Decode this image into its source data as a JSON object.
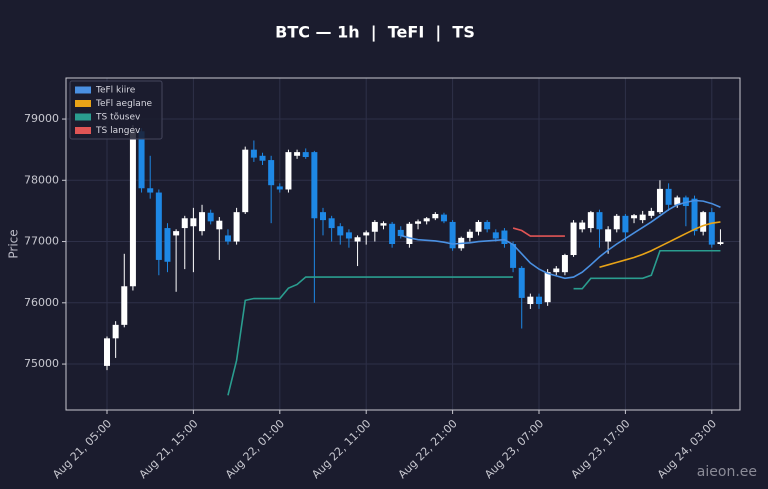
{
  "chart_data": {
    "type": "candlestick",
    "title": "BTC — 1h  |  TeFI  |  TS",
    "ylabel": "Price",
    "watermark": "aieon.ee",
    "x": [
      "Aug 21, 05:00",
      "Aug 21, 06:00",
      "Aug 21, 07:00",
      "Aug 21, 08:00",
      "Aug 21, 09:00",
      "Aug 21, 10:00",
      "Aug 21, 11:00",
      "Aug 21, 12:00",
      "Aug 21, 13:00",
      "Aug 21, 14:00",
      "Aug 21, 15:00",
      "Aug 21, 16:00",
      "Aug 21, 17:00",
      "Aug 21, 18:00",
      "Aug 21, 19:00",
      "Aug 21, 20:00",
      "Aug 21, 21:00",
      "Aug 21, 22:00",
      "Aug 21, 23:00",
      "Aug 22, 00:00",
      "Aug 22, 01:00",
      "Aug 22, 02:00",
      "Aug 22, 03:00",
      "Aug 22, 04:00",
      "Aug 22, 05:00",
      "Aug 22, 06:00",
      "Aug 22, 07:00",
      "Aug 22, 08:00",
      "Aug 22, 09:00",
      "Aug 22, 10:00",
      "Aug 22, 11:00",
      "Aug 22, 12:00",
      "Aug 22, 13:00",
      "Aug 22, 14:00",
      "Aug 22, 15:00",
      "Aug 22, 16:00",
      "Aug 22, 17:00",
      "Aug 22, 18:00",
      "Aug 22, 19:00",
      "Aug 22, 20:00",
      "Aug 22, 21:00",
      "Aug 22, 22:00",
      "Aug 22, 23:00",
      "Aug 23, 00:00",
      "Aug 23, 01:00",
      "Aug 23, 02:00",
      "Aug 23, 03:00",
      "Aug 23, 04:00",
      "Aug 23, 05:00",
      "Aug 23, 06:00",
      "Aug 23, 07:00",
      "Aug 23, 08:00",
      "Aug 23, 09:00",
      "Aug 23, 10:00",
      "Aug 23, 11:00",
      "Aug 23, 12:00",
      "Aug 23, 13:00",
      "Aug 23, 14:00",
      "Aug 23, 15:00",
      "Aug 23, 16:00",
      "Aug 23, 17:00",
      "Aug 23, 18:00",
      "Aug 23, 19:00",
      "Aug 23, 20:00",
      "Aug 23, 21:00",
      "Aug 23, 22:00",
      "Aug 23, 23:00",
      "Aug 24, 00:00",
      "Aug 24, 01:00",
      "Aug 24, 02:00",
      "Aug 24, 03:00",
      "Aug 24, 04:00"
    ],
    "open": [
      74970,
      75420,
      75640,
      76270,
      78800,
      77870,
      77800,
      77220,
      77100,
      77220,
      77250,
      77170,
      77470,
      77200,
      77100,
      77000,
      77480,
      78500,
      78400,
      78330,
      77900,
      77850,
      78400,
      78460,
      78460,
      77480,
      77380,
      77250,
      77150,
      77000,
      77100,
      77160,
      77260,
      77290,
      77190,
      76960,
      77290,
      77330,
      77380,
      77440,
      77320,
      76890,
      77060,
      77160,
      77320,
      77150,
      77180,
      76960,
      76570,
      75980,
      76100,
      76010,
      76500,
      76500,
      76780,
      77200,
      77220,
      77480,
      77000,
      77200,
      77420,
      77380,
      77350,
      77420,
      77480,
      77860,
      77600,
      77720,
      77700,
      77160,
      77480,
      76960
    ],
    "high": [
      75450,
      75700,
      76800,
      78900,
      78850,
      78400,
      77850,
      77300,
      77200,
      77420,
      77550,
      77600,
      77520,
      77400,
      77200,
      77550,
      78550,
      78650,
      78450,
      78400,
      77950,
      78500,
      78500,
      78520,
      78480,
      77550,
      77420,
      77300,
      77200,
      77100,
      77180,
      77350,
      77330,
      77320,
      77250,
      77320,
      77360,
      77400,
      77480,
      77470,
      77350,
      77080,
      77200,
      77350,
      77350,
      77200,
      77220,
      77000,
      76600,
      76150,
      76150,
      76550,
      76600,
      76800,
      77350,
      77350,
      77500,
      77520,
      77250,
      77450,
      77450,
      77450,
      77500,
      77550,
      78000,
      77950,
      77750,
      77750,
      77750,
      77500,
      77550,
      77200
    ],
    "low": [
      74900,
      75100,
      75600,
      76200,
      77800,
      77700,
      76450,
      76500,
      76180,
      76550,
      76500,
      77100,
      77280,
      76700,
      76950,
      76950,
      77450,
      78300,
      78250,
      77300,
      77800,
      77800,
      78350,
      78350,
      76000,
      77100,
      77000,
      76950,
      76900,
      76600,
      76950,
      77000,
      77200,
      76900,
      77050,
      76900,
      77200,
      77280,
      77350,
      77300,
      76850,
      76850,
      77000,
      77100,
      77150,
      77000,
      76900,
      76500,
      75580,
      75900,
      75900,
      75950,
      76450,
      76450,
      76750,
      77150,
      77150,
      76900,
      76800,
      77150,
      77000,
      77300,
      77300,
      77380,
      77450,
      77500,
      77550,
      77250,
      77100,
      77100,
      76900,
      76940
    ],
    "close": [
      75420,
      75640,
      76270,
      78800,
      77870,
      77800,
      76700,
      76670,
      77170,
      77380,
      77380,
      77480,
      77330,
      77340,
      77000,
      77480,
      78500,
      78370,
      78320,
      77920,
      77850,
      78460,
      78460,
      78380,
      77380,
      77350,
      77220,
      77100,
      77050,
      77070,
      77150,
      77320,
      77300,
      76960,
      77090,
      77290,
      77330,
      77380,
      77450,
      77330,
      76890,
      77060,
      77160,
      77320,
      77200,
      77050,
      76960,
      76570,
      76080,
      76100,
      75980,
      76500,
      76560,
      76780,
      77310,
      77310,
      77480,
      77200,
      77200,
      77420,
      77150,
      77430,
      77440,
      77500,
      77860,
      77600,
      77720,
      77580,
      77170,
      77480,
      76950,
      76990
    ],
    "up_color": "#ffffff",
    "down_color": "#1e88e5",
    "overlays": [
      {
        "name": "TeFl kiire",
        "color": "#4a90e2",
        "values": [
          null,
          null,
          null,
          null,
          null,
          null,
          null,
          null,
          null,
          null,
          null,
          null,
          null,
          null,
          null,
          null,
          null,
          null,
          null,
          null,
          null,
          null,
          null,
          null,
          null,
          null,
          null,
          null,
          null,
          null,
          null,
          null,
          null,
          null,
          77100,
          77060,
          77030,
          77020,
          77010,
          76990,
          76960,
          76970,
          76980,
          77000,
          77010,
          77020,
          77030,
          76950,
          76800,
          76650,
          76550,
          76480,
          76440,
          76400,
          76420,
          76500,
          76620,
          76750,
          76860,
          76960,
          77050,
          77140,
          77230,
          77320,
          77420,
          77520,
          77600,
          77640,
          77670,
          77660,
          77620,
          77560
        ]
      },
      {
        "name": "TeFl aeglane",
        "color": "#e8a317",
        "values": [
          null,
          null,
          null,
          null,
          null,
          null,
          null,
          null,
          null,
          null,
          null,
          null,
          null,
          null,
          null,
          null,
          null,
          null,
          null,
          null,
          null,
          null,
          null,
          null,
          null,
          null,
          null,
          null,
          null,
          null,
          null,
          null,
          null,
          null,
          null,
          null,
          null,
          null,
          null,
          null,
          null,
          null,
          null,
          null,
          null,
          null,
          null,
          null,
          null,
          null,
          null,
          null,
          null,
          null,
          null,
          null,
          null,
          76580,
          76620,
          76660,
          76700,
          76740,
          76790,
          76850,
          76920,
          76990,
          77060,
          77130,
          77200,
          77260,
          77300,
          77320
        ]
      },
      {
        "name": "TS tõusev",
        "color": "#2a9d8f",
        "values": [
          null,
          null,
          null,
          null,
          null,
          null,
          null,
          null,
          null,
          null,
          null,
          null,
          null,
          null,
          74490,
          75060,
          76040,
          76070,
          76070,
          76070,
          76070,
          76240,
          76300,
          76420,
          76420,
          76420,
          76420,
          76420,
          76420,
          76420,
          76420,
          76420,
          76420,
          76420,
          76420,
          76420,
          76420,
          76420,
          76420,
          76420,
          76420,
          76420,
          76420,
          76420,
          76420,
          76420,
          76420,
          76420,
          null,
          null,
          null,
          null,
          null,
          null,
          76230,
          76230,
          76400,
          76400,
          76400,
          76400,
          76400,
          76400,
          76400,
          76450,
          76850,
          76850,
          76850,
          76850,
          76850,
          76850,
          76850,
          76850
        ]
      },
      {
        "name": "TS langev",
        "color": "#e05555",
        "values": [
          null,
          null,
          null,
          null,
          null,
          null,
          null,
          null,
          null,
          null,
          null,
          null,
          null,
          null,
          null,
          null,
          null,
          null,
          null,
          null,
          null,
          null,
          null,
          null,
          null,
          null,
          null,
          null,
          null,
          null,
          null,
          null,
          null,
          null,
          null,
          null,
          null,
          null,
          null,
          null,
          null,
          null,
          null,
          null,
          null,
          null,
          null,
          77220,
          77180,
          77090,
          77090,
          77090,
          77090,
          77090,
          null,
          null,
          null,
          null,
          null,
          null,
          null,
          null,
          null,
          null,
          null,
          null,
          null,
          null,
          null,
          null,
          null,
          null
        ]
      }
    ],
    "ylim": [
      74250,
      79670
    ],
    "yticks": [
      75000,
      76000,
      77000,
      78000,
      79000
    ],
    "xticks": [
      "Aug 21, 05:00",
      "Aug 21, 15:00",
      "Aug 22, 01:00",
      "Aug 22, 11:00",
      "Aug 22, 21:00",
      "Aug 23, 07:00",
      "Aug 23, 17:00",
      "Aug 24, 03:00"
    ],
    "grid": true,
    "legend": "upper left"
  }
}
